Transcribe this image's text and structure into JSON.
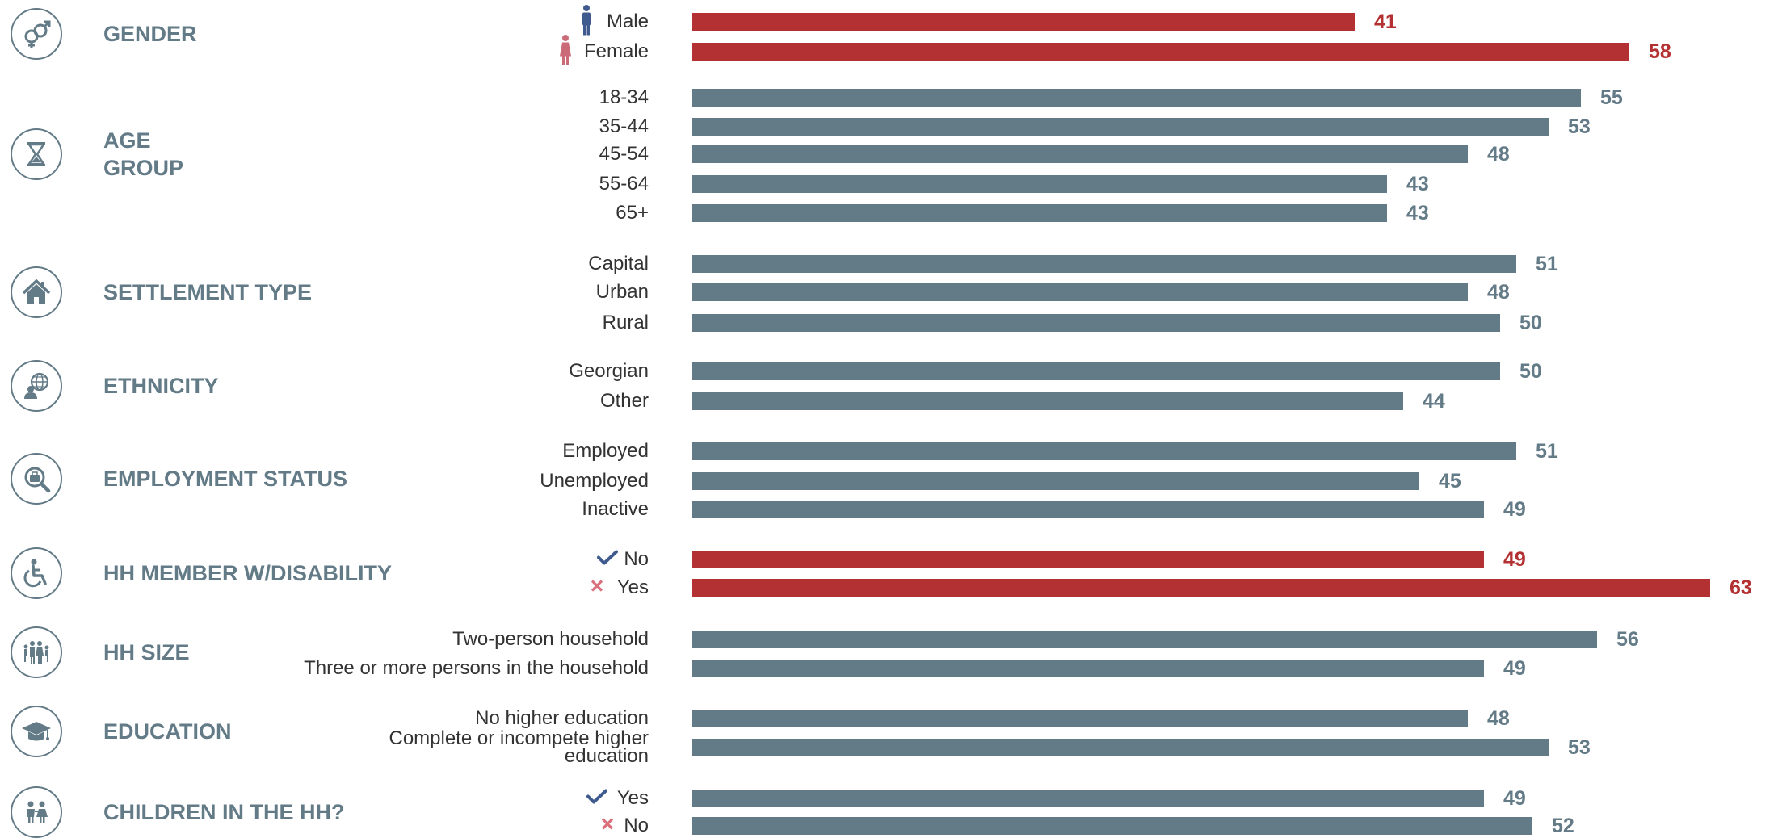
{
  "colors": {
    "highlight": "#b43133",
    "default": "#637a87",
    "row_label": "#333333",
    "male_icon": "#3f5a8e",
    "female_icon": "#cc6b78",
    "check": "#3f5a8e",
    "cross": "#d9707c"
  },
  "chart_data": {
    "type": "bar",
    "orientation": "horizontal",
    "title": "",
    "xlabel": "",
    "ylabel": "",
    "xlim": [
      0,
      63
    ],
    "grid": false,
    "legend": "none",
    "groups": [
      {
        "label": "GENDER",
        "icon": "gender-icon",
        "highlight": true,
        "items": [
          {
            "label": "Male",
            "value": 41,
            "marker": "male-figure-icon"
          },
          {
            "label": "Female",
            "value": 58,
            "marker": "female-figure-icon"
          }
        ]
      },
      {
        "label": "AGE\nGROUP",
        "icon": "hourglass-icon",
        "highlight": false,
        "items": [
          {
            "label": "18-34",
            "value": 55
          },
          {
            "label": "35-44",
            "value": 53
          },
          {
            "label": "45-54",
            "value": 48
          },
          {
            "label": "55-64",
            "value": 43
          },
          {
            "label": "65+",
            "value": 43
          }
        ]
      },
      {
        "label": "SETTLEMENT TYPE",
        "icon": "house-icon",
        "highlight": false,
        "items": [
          {
            "label": "Capital",
            "value": 51
          },
          {
            "label": "Urban",
            "value": 48
          },
          {
            "label": "Rural",
            "value": 50
          }
        ]
      },
      {
        "label": "ETHNICITY",
        "icon": "globe-person-icon",
        "highlight": false,
        "items": [
          {
            "label": "Georgian",
            "value": 50
          },
          {
            "label": "Other",
            "value": 44
          }
        ]
      },
      {
        "label": "EMPLOYMENT STATUS",
        "icon": "job-search-icon",
        "highlight": false,
        "items": [
          {
            "label": "Employed",
            "value": 51
          },
          {
            "label": "Unemployed",
            "value": 45
          },
          {
            "label": "Inactive",
            "value": 49
          }
        ]
      },
      {
        "label": "HH MEMBER W/DISABILITY",
        "icon": "wheelchair-icon",
        "highlight": true,
        "items": [
          {
            "label": "No",
            "value": 49,
            "marker": "check-icon"
          },
          {
            "label": "Yes",
            "value": 63,
            "marker": "cross-icon"
          }
        ]
      },
      {
        "label": "HH SIZE",
        "icon": "family-icon",
        "highlight": false,
        "items": [
          {
            "label": "Two-person household",
            "value": 56
          },
          {
            "label": "Three or more persons in the household",
            "value": 49
          }
        ]
      },
      {
        "label": "EDUCATION",
        "icon": "graduation-cap-icon",
        "highlight": false,
        "items": [
          {
            "label": "No higher education",
            "value": 48
          },
          {
            "label": "Complete or incompete higher\neducation",
            "value": 53
          }
        ]
      },
      {
        "label": "CHILDREN IN THE HH?",
        "icon": "children-icon",
        "highlight": false,
        "items": [
          {
            "label": "Yes",
            "value": 49,
            "marker": "check-icon"
          },
          {
            "label": "No",
            "value": 52,
            "marker": "cross-icon"
          }
        ]
      }
    ]
  }
}
